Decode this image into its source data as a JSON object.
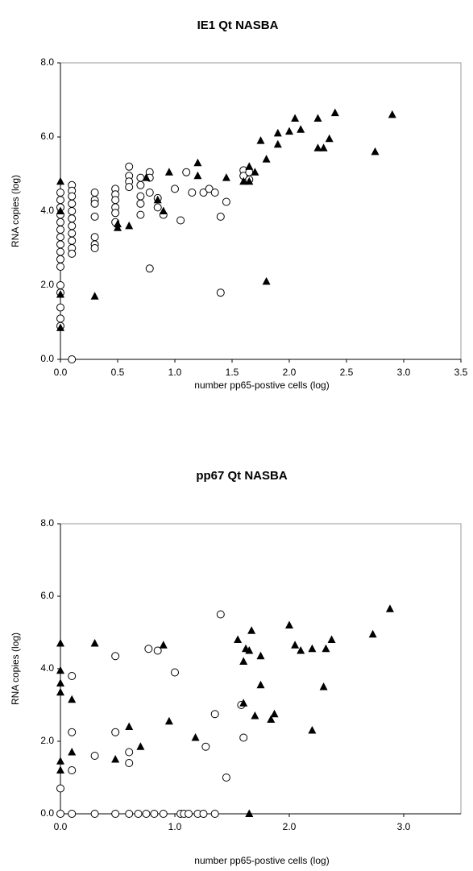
{
  "chart_data": [
    {
      "type": "scatter",
      "title": "IE1 Qt NASBA",
      "x_label": "number pp65-postive cells (log)",
      "y_label": "RNA copies (log)",
      "xlim": [
        0,
        3.5
      ],
      "ylim": [
        0,
        8
      ],
      "xticks": [
        {
          "value": 0,
          "label": "0.0"
        },
        {
          "value": 0.5,
          "label": "0.5"
        },
        {
          "value": 1,
          "label": "1.0"
        },
        {
          "value": 1.5,
          "label": "1.5"
        },
        {
          "value": 2,
          "label": "2.0"
        },
        {
          "value": 2.5,
          "label": "2.5"
        },
        {
          "value": 3,
          "label": "3.0"
        },
        {
          "value": 3.5,
          "label": "3.5"
        }
      ],
      "yticks": [
        {
          "value": 0,
          "label": "0.0"
        },
        {
          "value": 2,
          "label": "2.0"
        },
        {
          "value": 4,
          "label": "4.0"
        },
        {
          "value": 6,
          "label": "6.0"
        },
        {
          "value": 8,
          "label": "8.0"
        }
      ],
      "series": [
        {
          "marker": "circle",
          "color": "#000000",
          "x": [
            0,
            0,
            0,
            0,
            0,
            0,
            0,
            0,
            0,
            0,
            0,
            0,
            0,
            0,
            0,
            0,
            0.1,
            0.1,
            0.1,
            0.1,
            0.1,
            0.1,
            0.1,
            0.1,
            0.1,
            0.1,
            0.1,
            0.1,
            0.3,
            0.3,
            0.3,
            0.3,
            0.3,
            0.3,
            0.3,
            0.48,
            0.48,
            0.48,
            0.48,
            0.48,
            0.48,
            0.6,
            0.6,
            0.6,
            0.6,
            0.7,
            0.7,
            0.7,
            0.7,
            0.7,
            0.78,
            0.78,
            0.78,
            0.78,
            0.85,
            0.85,
            0.9,
            1.0,
            1.05,
            1.1,
            1.15,
            1.25,
            1.3,
            1.35,
            1.4,
            1.4,
            1.45,
            1.6,
            1.6,
            1.65,
            1.65
          ],
          "y": [
            4.5,
            4.3,
            4.1,
            3.9,
            3.7,
            3.5,
            3.3,
            3.1,
            2.9,
            2.7,
            2.5,
            2.0,
            1.8,
            1.4,
            1.1,
            0.9,
            4.7,
            4.55,
            4.4,
            4.2,
            4.0,
            3.8,
            3.6,
            3.4,
            3.2,
            3.0,
            2.85,
            0,
            4.5,
            4.3,
            4.2,
            3.85,
            3.3,
            3.1,
            3.0,
            4.6,
            4.45,
            4.3,
            4.1,
            3.95,
            3.7,
            5.2,
            4.95,
            4.8,
            4.65,
            4.9,
            4.7,
            4.4,
            4.2,
            3.9,
            5.05,
            4.9,
            4.5,
            2.45,
            4.35,
            4.1,
            3.9,
            4.6,
            3.75,
            5.05,
            4.5,
            4.5,
            4.6,
            4.5,
            3.85,
            1.8,
            4.25,
            5.1,
            4.95,
            5.05,
            4.85
          ]
        },
        {
          "marker": "triangle",
          "color": "#000000",
          "x": [
            0,
            0,
            0,
            0,
            0.3,
            0.5,
            0.5,
            0.6,
            0.75,
            0.85,
            0.9,
            0.95,
            1.2,
            1.2,
            1.45,
            1.6,
            1.65,
            1.65,
            1.7,
            1.75,
            1.8,
            1.8,
            1.9,
            1.9,
            2.0,
            2.05,
            2.1,
            2.25,
            2.25,
            2.3,
            2.35,
            2.4,
            2.75,
            2.9
          ],
          "y": [
            4.8,
            4.0,
            1.75,
            0.85,
            1.7,
            3.65,
            3.55,
            3.6,
            4.9,
            4.3,
            4.0,
            5.05,
            5.3,
            4.95,
            4.9,
            4.8,
            5.2,
            4.8,
            5.05,
            5.9,
            2.1,
            5.4,
            6.1,
            5.8,
            6.15,
            6.5,
            6.2,
            6.5,
            5.7,
            5.7,
            5.95,
            6.65,
            5.6,
            6.6
          ]
        }
      ]
    },
    {
      "type": "scatter",
      "title": "pp67 Qt NASBA",
      "x_label": "number pp65-postive cells (log)",
      "y_label": "RNA copies (log)",
      "xlim": [
        0,
        3.5
      ],
      "ylim": [
        0,
        8
      ],
      "xticks": [
        {
          "value": 0,
          "label": "0.0"
        },
        {
          "value": 1,
          "label": "1.0"
        },
        {
          "value": 2,
          "label": "2.0"
        },
        {
          "value": 3,
          "label": "3.0"
        }
      ],
      "yticks": [
        {
          "value": 0,
          "label": "0.0"
        },
        {
          "value": 2,
          "label": "2.0"
        },
        {
          "value": 4,
          "label": "4.0"
        },
        {
          "value": 6,
          "label": "6.0"
        },
        {
          "value": 8,
          "label": "8.0"
        }
      ],
      "series": [
        {
          "marker": "circle",
          "color": "#000000",
          "x": [
            0,
            0,
            0.1,
            0.1,
            0.1,
            0.1,
            0.3,
            0.3,
            0.48,
            0.48,
            0.48,
            0.6,
            0.6,
            0.6,
            0.68,
            0.75,
            0.77,
            0.82,
            0.85,
            0.9,
            1.0,
            1.05,
            1.08,
            1.12,
            1.2,
            1.25,
            1.27,
            1.35,
            1.35,
            1.4,
            1.45,
            1.58,
            1.6
          ],
          "y": [
            0.7,
            0,
            3.8,
            2.25,
            1.2,
            0,
            1.6,
            0,
            4.35,
            2.25,
            0,
            1.7,
            1.4,
            0,
            0,
            0,
            4.55,
            0,
            4.5,
            0,
            3.9,
            0,
            0,
            0,
            0,
            0,
            1.85,
            2.75,
            0,
            5.5,
            1.0,
            3.0,
            2.1
          ]
        },
        {
          "marker": "triangle",
          "color": "#000000",
          "x": [
            0,
            0,
            0,
            0,
            0,
            0,
            0.1,
            0.1,
            0.3,
            0.48,
            0.6,
            0.7,
            0.9,
            0.95,
            1.18,
            1.6,
            1.6,
            1.55,
            1.62,
            1.65,
            1.67,
            1.7,
            1.75,
            1.75,
            1.84,
            1.87,
            2.0,
            2.05,
            2.1,
            2.2,
            2.2,
            2.3,
            2.32,
            2.37,
            2.73,
            2.88,
            1.65
          ],
          "y": [
            4.7,
            3.95,
            3.6,
            3.35,
            1.45,
            1.2,
            3.15,
            1.7,
            4.7,
            1.5,
            2.4,
            1.85,
            4.65,
            2.55,
            2.1,
            4.2,
            3.05,
            4.8,
            4.55,
            4.5,
            5.05,
            2.7,
            4.35,
            3.55,
            2.6,
            2.75,
            5.2,
            4.65,
            4.5,
            4.55,
            2.3,
            3.5,
            4.55,
            4.8,
            4.95,
            5.65,
            0
          ]
        }
      ]
    }
  ]
}
